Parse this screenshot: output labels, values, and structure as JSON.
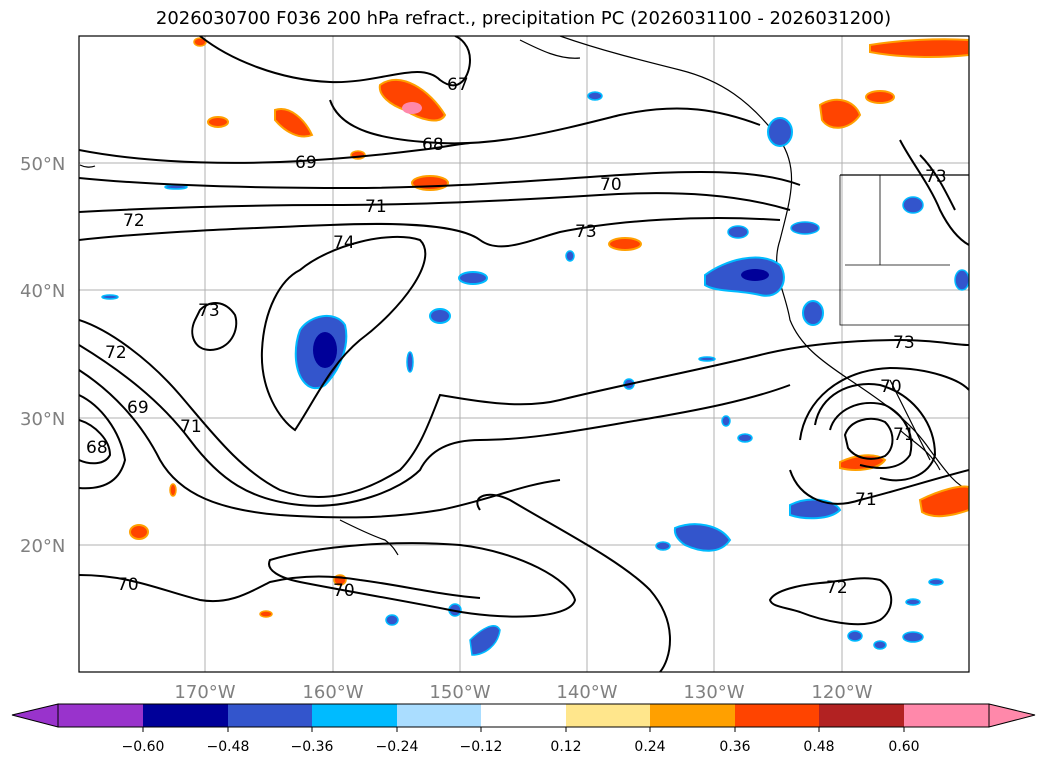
{
  "title": "2026030700 F036 200 hPa refract., precipitation PC (2026031100 - 2026031200)",
  "lat_labels": [
    "50°N",
    "40°N",
    "30°N",
    "20°N"
  ],
  "lon_labels": [
    "170°W",
    "160°W",
    "150°W",
    "140°W",
    "130°W",
    "120°W"
  ],
  "contour_labels": [
    "67",
    "68",
    "69",
    "70",
    "71",
    "72",
    "73",
    "74",
    "73",
    "72",
    "71",
    "69",
    "68",
    "70",
    "70",
    "71",
    "72",
    "73",
    "70",
    "71",
    "73"
  ],
  "colorbar": {
    "ticks": [
      "−0.60",
      "−0.48",
      "−0.36",
      "−0.24",
      "−0.12",
      "0.12",
      "0.24",
      "0.36",
      "0.48",
      "0.60"
    ],
    "colors": [
      "#9933cc",
      "#000099",
      "#3355cc",
      "#00bbff",
      "#aaddff",
      "#ffffff",
      "#ffe68c",
      "#ffa000",
      "#ff4400",
      "#b22222",
      "#ff88aa"
    ]
  }
}
